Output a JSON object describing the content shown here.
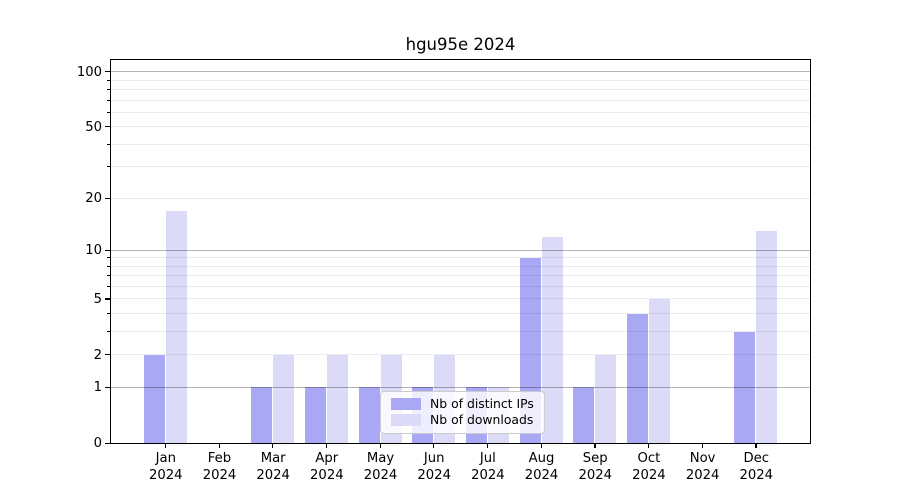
{
  "chart_data": {
    "type": "bar",
    "title": "hgu95e 2024",
    "categories": [
      "Jan",
      "Feb",
      "Mar",
      "Apr",
      "May",
      "Jun",
      "Jul",
      "Aug",
      "Sep",
      "Oct",
      "Nov",
      "Dec"
    ],
    "x_year": "2024",
    "series": [
      {
        "name": "Nb of distinct IPs",
        "color": "#a8a8f4",
        "values": [
          2,
          0,
          1,
          1,
          1,
          1,
          1,
          9,
          1,
          4,
          0,
          3
        ]
      },
      {
        "name": "Nb of downloads",
        "color": "#dbdbf8",
        "values": [
          17,
          0,
          2,
          2,
          2,
          2,
          1,
          12,
          2,
          5,
          0,
          13
        ]
      }
    ],
    "y_axis": {
      "scale": "log10(1+y)",
      "tick_labels": [
        0,
        1,
        2,
        5,
        10,
        20,
        50,
        100
      ],
      "major_gridlines": [
        1,
        10,
        100
      ],
      "minor_gridlines": [
        2,
        3,
        4,
        5,
        6,
        7,
        8,
        9,
        20,
        30,
        40,
        50,
        60,
        70,
        80,
        90
      ],
      "minor_axis_ticks": [
        3,
        4,
        6,
        7,
        8,
        9,
        30,
        40,
        60,
        70,
        80,
        90
      ],
      "ymin": 0,
      "ymax": 115
    },
    "legend": {
      "position": "lower-center"
    },
    "grid": true,
    "background": "#ffffff"
  }
}
